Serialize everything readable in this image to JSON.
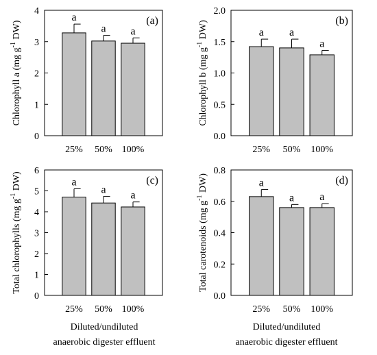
{
  "figure": {
    "xlabel_line1": "Diluted/undiluted",
    "xlabel_line2": "anaerobic digester effluent"
  },
  "chart_data": [
    {
      "type": "bar",
      "panel": "(a)",
      "ylabel": "Chlorophyll a (mg g",
      "ylabel_sup": "-1",
      "ylabel_tail": " DW)",
      "categories": [
        "25%",
        "50%",
        "100%"
      ],
      "values": [
        3.28,
        3.02,
        2.95
      ],
      "errors": [
        0.28,
        0.18,
        0.17
      ],
      "labels": [
        "a",
        "a",
        "a"
      ],
      "ylim": [
        0,
        4
      ],
      "yticks": [
        0,
        1,
        2,
        3,
        4
      ],
      "ytick_labels": [
        "0",
        "1",
        "2",
        "3",
        "4"
      ],
      "grid": false
    },
    {
      "type": "bar",
      "panel": "(b)",
      "ylabel": "Chlorophyll b (mg g",
      "ylabel_sup": "-1",
      "ylabel_tail": " DW)",
      "categories": [
        "25%",
        "50%",
        "100%"
      ],
      "values": [
        1.42,
        1.4,
        1.29
      ],
      "errors": [
        0.12,
        0.14,
        0.07
      ],
      "labels": [
        "a",
        "a",
        "a"
      ],
      "ylim": [
        0,
        2
      ],
      "yticks": [
        0,
        0.5,
        1,
        1.5,
        2
      ],
      "ytick_labels": [
        "0.0",
        "0.5",
        "1.0",
        "1.5",
        "2.0"
      ],
      "grid": false
    },
    {
      "type": "bar",
      "panel": "(c)",
      "ylabel": "Total chlorophylls (mg g",
      "ylabel_sup": "-1",
      "ylabel_tail": " DW)",
      "categories": [
        "25%",
        "50%",
        "100%"
      ],
      "values": [
        4.7,
        4.42,
        4.23
      ],
      "errors": [
        0.4,
        0.32,
        0.24
      ],
      "labels": [
        "a",
        "a",
        "a"
      ],
      "ylim": [
        0,
        6
      ],
      "yticks": [
        0,
        1,
        2,
        3,
        4,
        5,
        6
      ],
      "ytick_labels": [
        "0",
        "1",
        "2",
        "3",
        "4",
        "5",
        "6"
      ],
      "grid": false
    },
    {
      "type": "bar",
      "panel": "(d)",
      "ylabel": "Total carotenoids (mg g",
      "ylabel_sup": "-1",
      "ylabel_tail": " DW)",
      "categories": [
        "25%",
        "50%",
        "100%"
      ],
      "values": [
        0.63,
        0.56,
        0.56
      ],
      "errors": [
        0.045,
        0.02,
        0.025
      ],
      "labels": [
        "a",
        "a",
        "a"
      ],
      "ylim": [
        0,
        0.8
      ],
      "yticks": [
        0,
        0.2,
        0.4,
        0.6,
        0.8
      ],
      "ytick_labels": [
        "0.0",
        "0.2",
        "0.4",
        "0.6",
        "0.8"
      ],
      "grid": false
    }
  ]
}
